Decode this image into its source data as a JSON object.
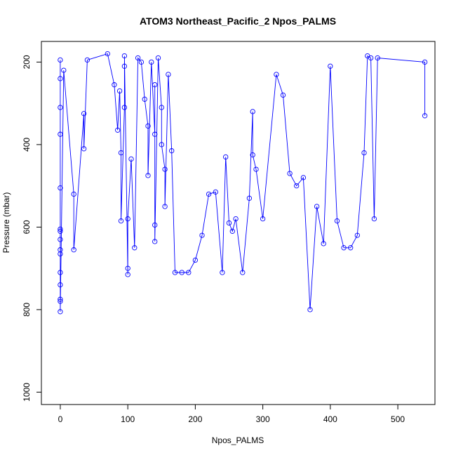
{
  "chart_data": {
    "type": "scatter",
    "title": "ATOM3 Northeast_Pacific_2 Npos_PALMS",
    "xlabel": "Npos_PALMS",
    "ylabel": "Pressure (mbar)",
    "xlim": [
      -28,
      555
    ],
    "ylim": [
      1030,
      150
    ],
    "y_reversed": true,
    "x_ticks": [
      0,
      100,
      200,
      300,
      400,
      500
    ],
    "y_ticks": [
      200,
      400,
      600,
      800,
      1000
    ],
    "grid": false,
    "legend": "none",
    "colors": {
      "series": "#0000ff",
      "axis": "#000000",
      "background": "#ffffff"
    },
    "series": [
      {
        "style": "points-and-lines",
        "x": [
          0,
          0,
          0,
          0,
          0,
          0,
          0,
          0,
          0,
          0,
          0,
          0,
          0,
          0,
          0,
          5,
          20,
          20,
          35,
          35,
          40,
          70,
          80,
          85,
          88,
          90,
          90,
          95,
          95,
          95,
          100,
          100,
          100,
          105,
          110,
          115,
          120,
          125,
          130,
          130,
          135,
          140,
          140,
          140,
          140,
          145,
          150,
          150,
          155,
          155,
          160,
          165,
          170,
          180,
          190,
          200,
          210,
          220,
          230,
          240,
          245,
          250,
          255,
          260,
          270,
          280,
          285,
          285,
          290,
          300,
          320,
          330,
          340,
          350,
          360,
          370,
          380,
          390,
          400,
          410,
          420,
          430,
          440,
          450,
          455,
          460,
          465,
          470,
          540,
          540
        ],
        "y": [
          195,
          240,
          310,
          375,
          505,
          605,
          610,
          630,
          655,
          665,
          710,
          740,
          775,
          780,
          805,
          220,
          520,
          655,
          325,
          410,
          195,
          180,
          255,
          365,
          270,
          420,
          585,
          310,
          210,
          185,
          715,
          700,
          580,
          435,
          650,
          190,
          200,
          290,
          355,
          475,
          200,
          375,
          255,
          595,
          635,
          190,
          310,
          400,
          460,
          550,
          230,
          415,
          710,
          710,
          710,
          680,
          620,
          520,
          515,
          710,
          430,
          590,
          610,
          580,
          710,
          530,
          320,
          425,
          460,
          580,
          230,
          280,
          470,
          500,
          480,
          800,
          550,
          640,
          210,
          585,
          650,
          650,
          620,
          420,
          185,
          190,
          580,
          190,
          200,
          330
        ]
      }
    ]
  }
}
